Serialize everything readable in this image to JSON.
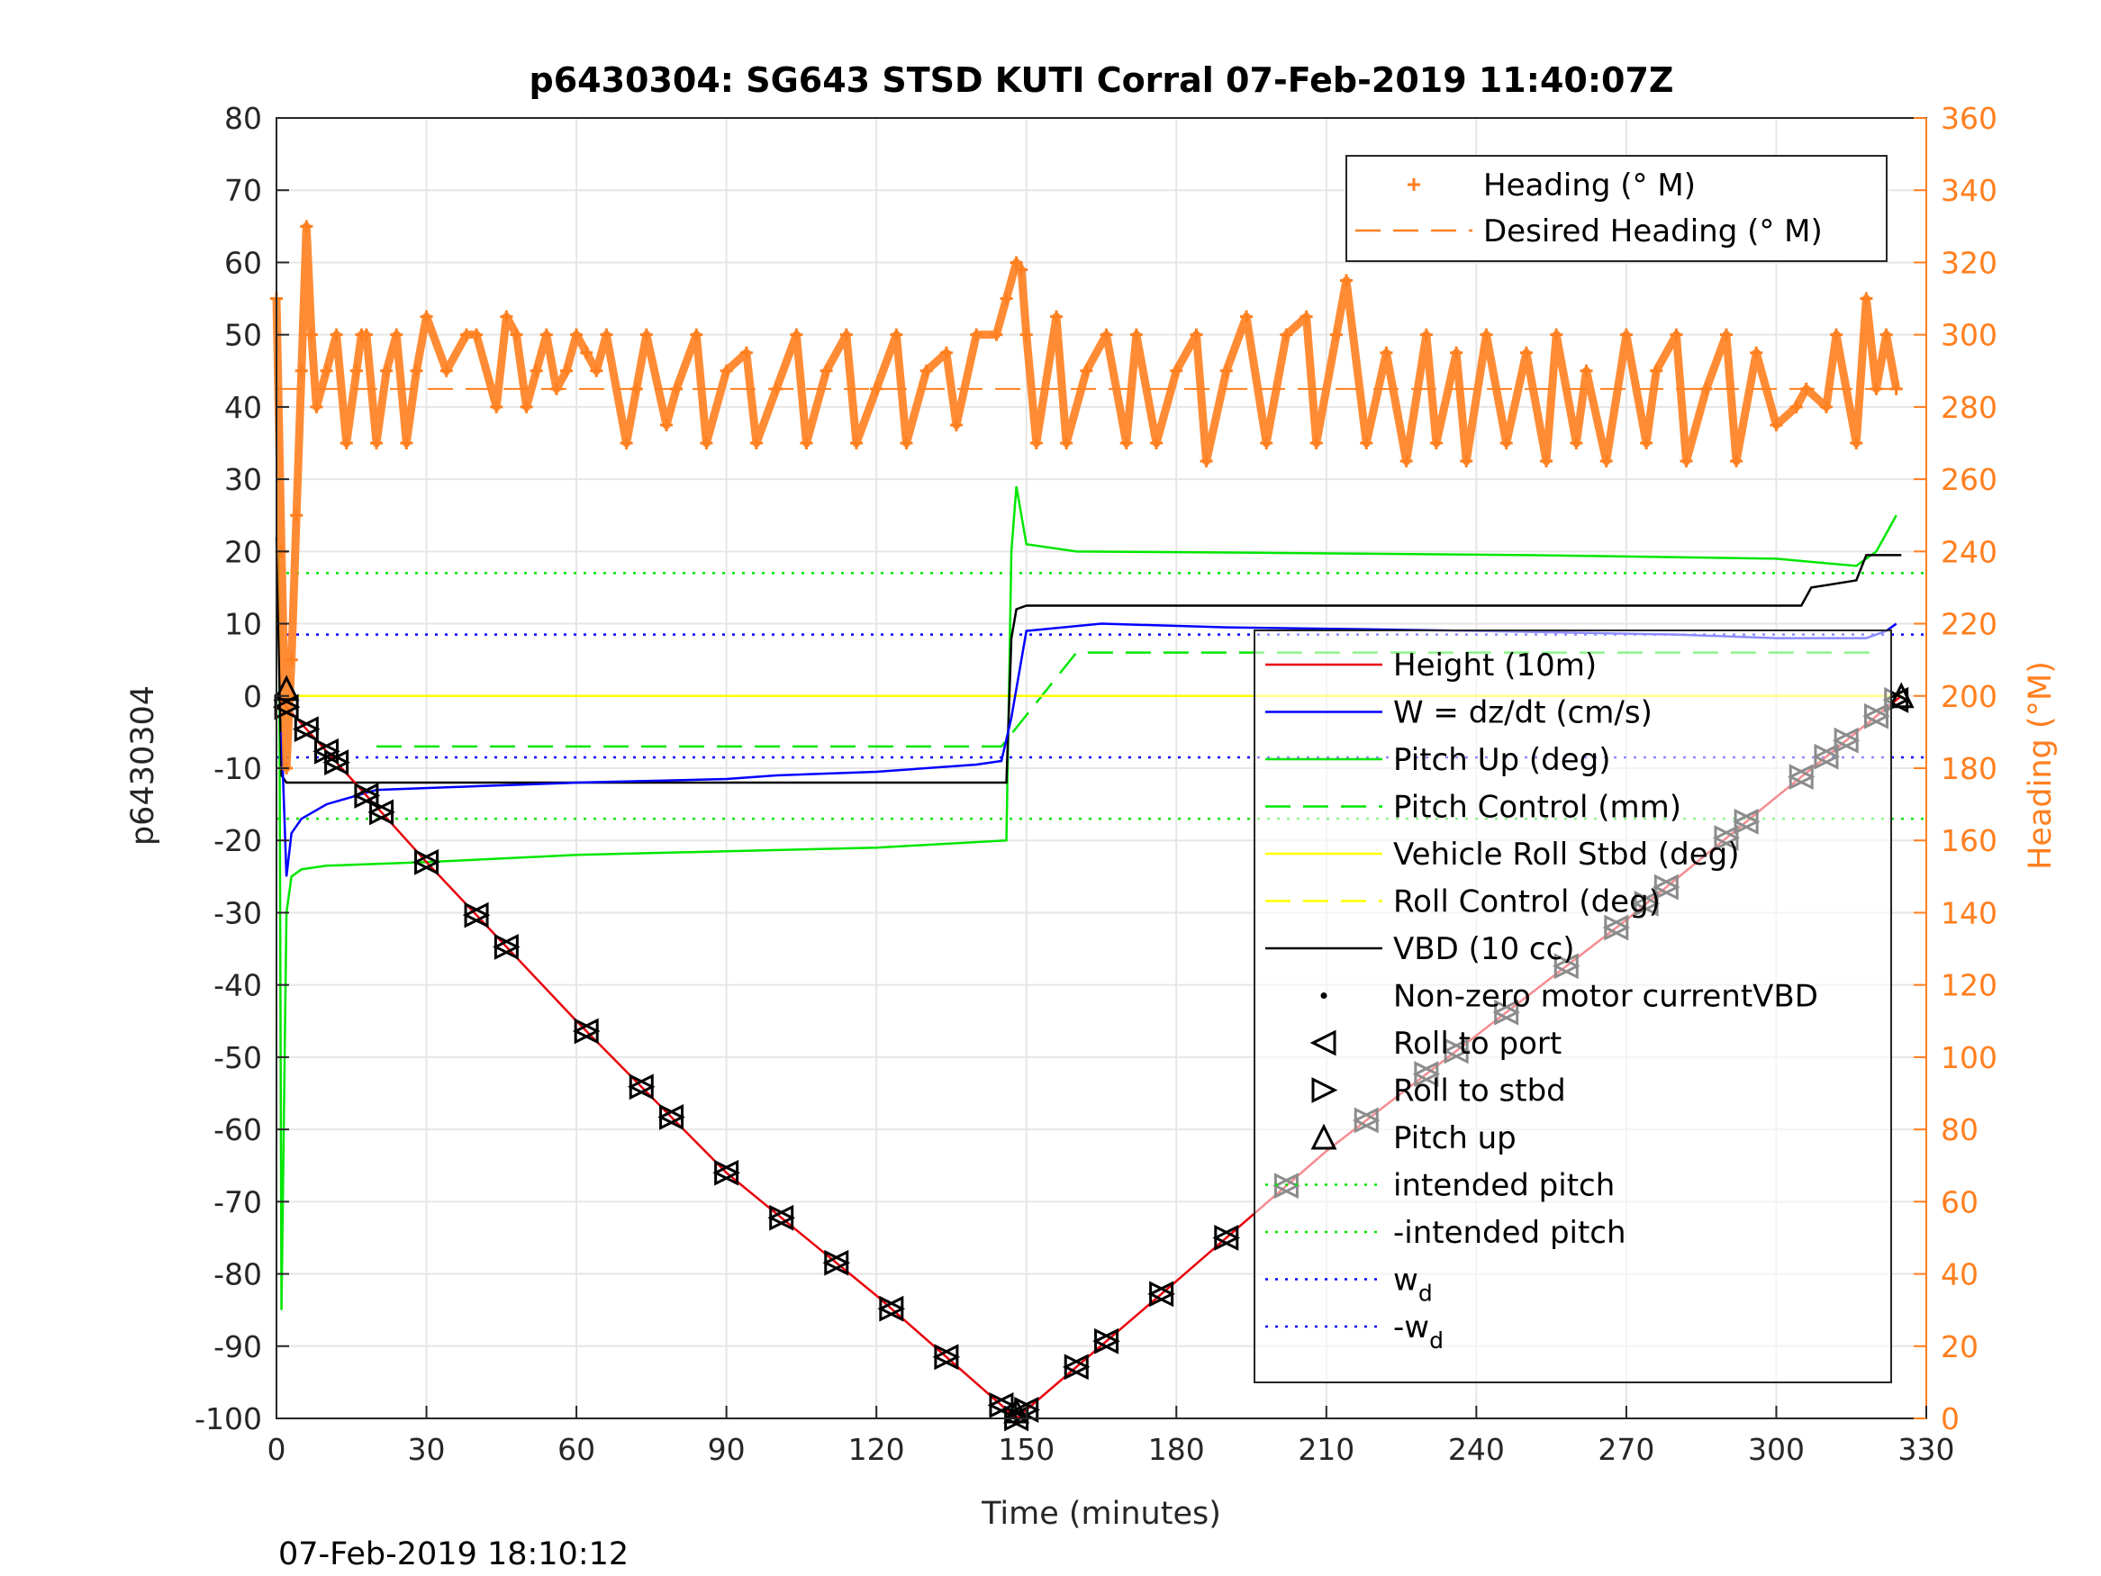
{
  "chart_data": {
    "type": "line",
    "title": "p6430304: SG643 STSD KUTI Corral 07-Feb-2019 11:40:07Z",
    "xlabel": "Time (minutes)",
    "ylabel": "p6430304",
    "y2label": "Heading (°M)",
    "footer": "07-Feb-2019 18:10:12",
    "xlim": [
      0,
      330
    ],
    "ylim": [
      -100,
      80
    ],
    "y2lim": [
      0,
      360
    ],
    "xticks": [
      "0",
      "30",
      "60",
      "90",
      "120",
      "150",
      "180",
      "210",
      "240",
      "270",
      "300",
      "330"
    ],
    "yticks": [
      "80",
      "70",
      "60",
      "50",
      "40",
      "30",
      "20",
      "10",
      "0",
      "-10",
      "-20",
      "-30",
      "-40",
      "-50",
      "-60",
      "-70",
      "-80",
      "-90",
      "-100"
    ],
    "y2ticks": [
      "360",
      "340",
      "320",
      "300",
      "280",
      "260",
      "240",
      "220",
      "200",
      "180",
      "160",
      "140",
      "120",
      "100",
      "80",
      "60",
      "40",
      "20",
      "0"
    ],
    "grid": true,
    "heading_color": "#ff7f1f",
    "legend_top": {
      "location": "top-right",
      "entries": [
        {
          "label": "Heading (° M)",
          "color": "#ff7f1f",
          "style": "plus"
        },
        {
          "label": "Desired Heading (° M)",
          "color": "#ff7f1f",
          "style": "dash"
        }
      ]
    },
    "legend_main": {
      "location": "right",
      "entries": [
        {
          "label": "Height (10m)",
          "color": "#e8000b",
          "style": "solid"
        },
        {
          "label": "W = dz/dt (cm/s)",
          "color": "#0000ff",
          "style": "solid"
        },
        {
          "label": "Pitch Up (deg)",
          "color": "#00e600",
          "style": "solid"
        },
        {
          "label": "Pitch Control (mm)",
          "color": "#00e600",
          "style": "dash"
        },
        {
          "label": "Vehicle Roll Stbd (deg)",
          "color": "#ffff00",
          "style": "solid"
        },
        {
          "label": "Roll Control (deg)",
          "color": "#ffff00",
          "style": "dash"
        },
        {
          "label": "VBD (10 cc)",
          "color": "#000000",
          "style": "solid"
        },
        {
          "label": "Non-zero motor currentVBD",
          "color": "#000000",
          "style": "dot"
        },
        {
          "label": "Roll to port",
          "color": "#000000",
          "style": "tri-left"
        },
        {
          "label": "Roll to stbd",
          "color": "#000000",
          "style": "tri-right"
        },
        {
          "label": "Pitch up",
          "color": "#000000",
          "style": "tri-up"
        },
        {
          "label": "intended pitch",
          "color": "#00e600",
          "style": "dotted"
        },
        {
          "label": "-intended pitch",
          "color": "#00e600",
          "style": "dotted"
        },
        {
          "label": "w",
          "sub": "d",
          "color": "#0000ff",
          "style": "dotted"
        },
        {
          "label": "-w",
          "sub": "d",
          "color": "#0000ff",
          "style": "dotted"
        }
      ]
    },
    "series": [
      {
        "name": "Height (10m)",
        "color": "#e8000b",
        "x": [
          0,
          30,
          60,
          90,
          120,
          148,
          180,
          210,
          240,
          270,
          300,
          325
        ],
        "y": [
          0,
          -23,
          -45,
          -66,
          -83,
          -100,
          -81,
          -63,
          -47,
          -31,
          -14,
          0
        ]
      },
      {
        "name": "W = dz/dt (cm/s)",
        "color": "#0000ff",
        "x": [
          1,
          2,
          3,
          5,
          10,
          20,
          40,
          60,
          90,
          100,
          120,
          140,
          145,
          147,
          150,
          165,
          190,
          240,
          280,
          300,
          318,
          322,
          324
        ],
        "y": [
          -5,
          -25,
          -19,
          -17,
          -15,
          -13,
          -12.5,
          -12,
          -11.5,
          -11,
          -10.5,
          -9.5,
          -9,
          -3,
          9,
          10,
          9.5,
          9,
          8.5,
          8,
          8,
          9,
          10
        ]
      },
      {
        "name": "Pitch Up (deg)",
        "color": "#00e600",
        "x": [
          0.5,
          1,
          2,
          3,
          5,
          10,
          30,
          60,
          90,
          120,
          146,
          147,
          148,
          150,
          160,
          200,
          250,
          300,
          316,
          320,
          324
        ],
        "y": [
          20,
          -85,
          -30,
          -25,
          -24,
          -23.5,
          -23,
          -22,
          -21.5,
          -21,
          -20,
          20,
          29,
          21,
          20,
          19.8,
          19.5,
          19,
          18,
          20,
          25
        ]
      },
      {
        "name": "Pitch Control (mm)",
        "color": "#00e600",
        "style": "dash",
        "x": [
          20,
          145,
          160,
          320
        ],
        "y": [
          -7,
          -7,
          6,
          6
        ]
      },
      {
        "name": "Vehicle Roll Stbd (deg)",
        "color": "#ffff00",
        "x": [
          0,
          5,
          147,
          150,
          325
        ],
        "y": [
          0,
          0,
          0,
          0,
          0
        ]
      },
      {
        "name": "VBD (10 cc)",
        "color": "#000000",
        "x": [
          0,
          1,
          2,
          146,
          147,
          148,
          150,
          190,
          305,
          307,
          316,
          318,
          325
        ],
        "y": [
          22,
          -11,
          -12,
          -12,
          8,
          12,
          12.5,
          12.5,
          12.5,
          15,
          16,
          19.5,
          19.5
        ]
      },
      {
        "name": "intended pitch",
        "color": "#00e600",
        "style": "dotted",
        "x": [
          0,
          330
        ],
        "y": [
          17,
          17
        ]
      },
      {
        "name": "-intended pitch",
        "color": "#00e600",
        "style": "dotted",
        "x": [
          0,
          330
        ],
        "y": [
          -17,
          -17
        ]
      },
      {
        "name": "w_d",
        "color": "#0000ff",
        "style": "dotted",
        "x": [
          0,
          330
        ],
        "y": [
          8.5,
          8.5
        ]
      },
      {
        "name": "-w_d",
        "color": "#0000ff",
        "style": "dotted",
        "x": [
          0,
          330
        ],
        "y": [
          -8.5,
          -8.5
        ]
      },
      {
        "name": "Heading (° M)",
        "color": "#ff7f1f",
        "axis": "right",
        "marker": "plus",
        "x": [
          0,
          1,
          2,
          3,
          4,
          5,
          6,
          7,
          8,
          10,
          12,
          14,
          16,
          17,
          18,
          20,
          22,
          24,
          26,
          28,
          30,
          34,
          38,
          40,
          44,
          46,
          48,
          50,
          52,
          54,
          56,
          58,
          60,
          62,
          64,
          66,
          70,
          72,
          74,
          78,
          80,
          84,
          86,
          90,
          94,
          96,
          100,
          104,
          106,
          110,
          114,
          116,
          120,
          124,
          126,
          130,
          134,
          136,
          140,
          144,
          146,
          148,
          149,
          150,
          152,
          156,
          158,
          162,
          166,
          170,
          172,
          176,
          180,
          184,
          186,
          190,
          194,
          198,
          202,
          206,
          208,
          212,
          214,
          218,
          222,
          226,
          230,
          232,
          236,
          238,
          242,
          246,
          250,
          254,
          256,
          260,
          262,
          266,
          270,
          274,
          276,
          280,
          282,
          286,
          290,
          292,
          296,
          300,
          304,
          306,
          310,
          312,
          316,
          318,
          320,
          322,
          324
        ],
        "y": [
          310,
          240,
          180,
          210,
          250,
          290,
          330,
          300,
          280,
          290,
          300,
          270,
          290,
          300,
          300,
          270,
          290,
          300,
          270,
          290,
          305,
          290,
          300,
          300,
          280,
          305,
          300,
          280,
          290,
          300,
          285,
          290,
          300,
          295,
          290,
          300,
          270,
          285,
          300,
          275,
          285,
          300,
          270,
          290,
          295,
          270,
          285,
          300,
          270,
          290,
          300,
          270,
          285,
          300,
          270,
          290,
          295,
          275,
          300,
          300,
          310,
          320,
          318,
          300,
          270,
          305,
          270,
          290,
          300,
          270,
          300,
          270,
          290,
          300,
          265,
          290,
          305,
          270,
          300,
          305,
          270,
          300,
          315,
          270,
          295,
          265,
          300,
          270,
          295,
          265,
          300,
          270,
          295,
          265,
          300,
          270,
          290,
          265,
          300,
          270,
          290,
          300,
          265,
          285,
          300,
          265,
          295,
          275,
          280,
          285,
          280,
          300,
          270,
          310,
          285,
          300,
          285
        ]
      },
      {
        "name": "Desired Heading (° M)",
        "color": "#ff7f1f",
        "axis": "right",
        "style": "dash",
        "x": [
          0,
          325
        ],
        "y": [
          285,
          285
        ]
      }
    ],
    "markers": {
      "dive_x": [
        2,
        6,
        10,
        12,
        18,
        21,
        30,
        40,
        46,
        62,
        73,
        79,
        90,
        101,
        112,
        123,
        134,
        145,
        148
      ],
      "climb_x": [
        150,
        160,
        166,
        177,
        190,
        202,
        218,
        230,
        236,
        246,
        258,
        268,
        274,
        278,
        290,
        294,
        305,
        310,
        314,
        320,
        324
      ]
    }
  }
}
